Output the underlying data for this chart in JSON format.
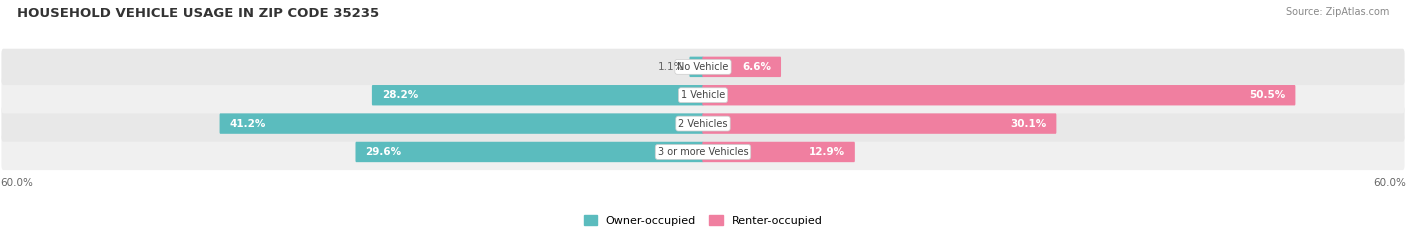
{
  "title": "HOUSEHOLD VEHICLE USAGE IN ZIP CODE 35235",
  "source": "Source: ZipAtlas.com",
  "categories": [
    "No Vehicle",
    "1 Vehicle",
    "2 Vehicles",
    "3 or more Vehicles"
  ],
  "owner_values": [
    1.1,
    28.2,
    41.2,
    29.6
  ],
  "renter_values": [
    6.6,
    50.5,
    30.1,
    12.9
  ],
  "owner_color": "#5bbcbe",
  "renter_color": "#f07fa0",
  "row_bg_colors": [
    "#e8e8e8",
    "#f0f0f0",
    "#e8e8e8",
    "#f0f0f0"
  ],
  "axis_max": 60.0,
  "axis_label_left": "60.0%",
  "axis_label_right": "60.0%",
  "figsize": [
    14.06,
    2.33
  ],
  "dpi": 100,
  "bg_color": "#ffffff"
}
